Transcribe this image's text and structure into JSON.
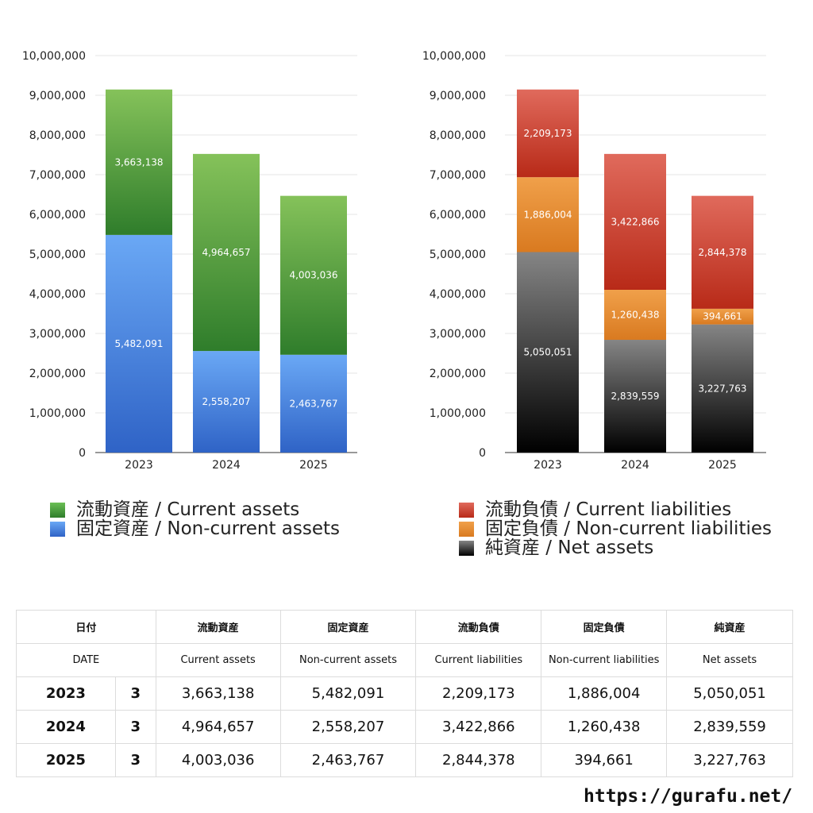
{
  "chart_data": [
    {
      "type": "bar",
      "stacked": true,
      "categories": [
        "2023",
        "2024",
        "2025"
      ],
      "ylim": [
        0,
        10000000
      ],
      "yticks": [
        "0",
        "1,000,000",
        "2,000,000",
        "3,000,000",
        "4,000,000",
        "5,000,000",
        "6,000,000",
        "7,000,000",
        "8,000,000",
        "9,000,000",
        "10,000,000"
      ],
      "grid": true,
      "legend_placement": "bottom",
      "series": [
        {
          "name": "固定資産 / Non-current assets",
          "values": [
            5482091,
            2558207,
            2463767
          ],
          "labels": [
            "5,482,091",
            "2,558,207",
            "2,463,767"
          ],
          "color_top": "#6aa8f5",
          "color_bottom": "#2f63c6"
        },
        {
          "name": "流動資産 / Current assets",
          "values": [
            3663138,
            4964657,
            4003036
          ],
          "labels": [
            "3,663,138",
            "4,964,657",
            "4,003,036"
          ],
          "color_top": "#85c25a",
          "color_bottom": "#2f7d2b"
        }
      ]
    },
    {
      "type": "bar",
      "stacked": true,
      "categories": [
        "2023",
        "2024",
        "2025"
      ],
      "ylim": [
        0,
        10000000
      ],
      "yticks": [
        "0",
        "1,000,000",
        "2,000,000",
        "3,000,000",
        "4,000,000",
        "5,000,000",
        "6,000,000",
        "7,000,000",
        "8,000,000",
        "9,000,000",
        "10,000,000"
      ],
      "grid": true,
      "legend_placement": "bottom",
      "series": [
        {
          "name": "純資産 / Net assets",
          "values": [
            5050051,
            2839559,
            3227763
          ],
          "labels": [
            "5,050,051",
            "2,839,559",
            "3,227,763"
          ],
          "color_top": "#858585",
          "color_bottom": "#000000"
        },
        {
          "name": "固定負債 / Non-current liabilities",
          "values": [
            1886004,
            1260438,
            394661
          ],
          "labels": [
            "1,886,004",
            "1,260,438",
            "394,661"
          ],
          "color_top": "#f0a04a",
          "color_bottom": "#d97a20"
        },
        {
          "name": "流動負債 / Current liabilities",
          "values": [
            2209173,
            3422866,
            2844378
          ],
          "labels": [
            "2,209,173",
            "3,422,866",
            "2,844,378"
          ],
          "color_top": "#e06a5c",
          "color_bottom": "#b82a18"
        }
      ]
    }
  ],
  "legend_left": [
    {
      "label": "流動資産 / Current assets",
      "color": "#4a9a3a"
    },
    {
      "label": "固定資産 / Non-current assets",
      "color": "#3f7ddc"
    }
  ],
  "legend_right": [
    {
      "label": "流動負債 / Current liabilities",
      "color": "#d04530"
    },
    {
      "label": "固定負債 / Non-current liabilities",
      "color": "#e88a35"
    },
    {
      "label": "純資産 / Net assets",
      "color": "#1a1a1a"
    }
  ],
  "table": {
    "header_jp": [
      "日付",
      "流動資産",
      "固定資産",
      "流動負債",
      "固定負債",
      "純資産"
    ],
    "header_en": [
      "DATE",
      "Current assets",
      "Non-current assets",
      "Current liabilities",
      "Non-current liabilities",
      "Net assets"
    ],
    "rows": [
      {
        "year": "2023",
        "count": "3",
        "values": [
          "3,663,138",
          "5,482,091",
          "2,209,173",
          "1,886,004",
          "5,050,051"
        ]
      },
      {
        "year": "2024",
        "count": "3",
        "values": [
          "4,964,657",
          "2,558,207",
          "3,422,866",
          "1,260,438",
          "2,839,559"
        ]
      },
      {
        "year": "2025",
        "count": "3",
        "values": [
          "4,003,036",
          "2,463,767",
          "2,844,378",
          "394,661",
          "3,227,763"
        ]
      }
    ]
  },
  "footer_url": "https://gurafu.net/"
}
